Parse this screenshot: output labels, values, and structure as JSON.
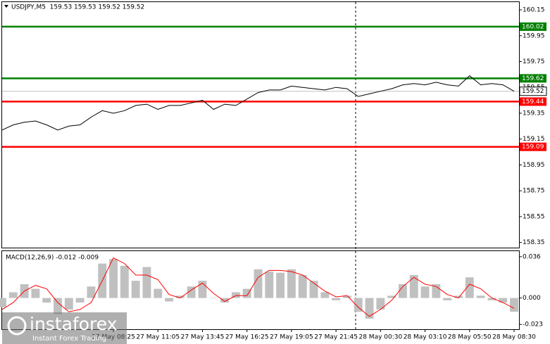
{
  "chart_data": [
    {
      "type": "line",
      "title": "USDJPY,M5  159.53 159.53 159.52 159.52",
      "categories": [
        null,
        null,
        null,
        null,
        null,
        null,
        null,
        null,
        null,
        null,
        "27 May 08:25",
        null,
        null,
        null,
        "27 May 11:05",
        null,
        null,
        null,
        "27 May 13:45",
        null,
        null,
        null,
        "27 May 16:25",
        null,
        null,
        null,
        "27 May 19:05",
        null,
        null,
        null,
        "27 May 21:45",
        null,
        null,
        null,
        "28 May 00:30",
        null,
        null,
        null,
        "28 May 03:10",
        null,
        null,
        null,
        "28 May 05:50",
        null,
        null,
        null,
        "28 May 08:30"
      ],
      "values": [
        159.22,
        159.26,
        159.28,
        159.29,
        159.26,
        159.22,
        159.25,
        159.26,
        159.32,
        159.37,
        159.35,
        159.37,
        159.41,
        159.42,
        159.38,
        159.41,
        159.41,
        159.43,
        159.45,
        159.38,
        159.42,
        159.41,
        159.46,
        159.51,
        159.53,
        159.53,
        159.56,
        159.55,
        159.54,
        159.53,
        159.55,
        159.54,
        159.48,
        159.5,
        159.52,
        159.54,
        159.57,
        159.58,
        159.57,
        159.59,
        159.57,
        159.56,
        159.64,
        159.57,
        159.58,
        159.57,
        159.52
      ],
      "color": "#000000",
      "ylim": [
        158.31,
        160.21
      ],
      "yticks": [
        160.15,
        159.95,
        159.75,
        159.55,
        159.35,
        159.15,
        158.95,
        158.75,
        158.55,
        158.35
      ],
      "levels": [
        {
          "value": 160.02,
          "color": "#008000"
        },
        {
          "value": 159.62,
          "color": "#008000"
        },
        {
          "value": 159.44,
          "color": "#ff0000"
        },
        {
          "value": 159.09,
          "color": "#ff0000"
        }
      ],
      "last_price": 159.52
    },
    {
      "type": "macd",
      "title": "MACD(12,26,9) -0.012 -0.009",
      "histogram_color": "#c0c0c0",
      "histogram_values": [
        -0.008,
        0.005,
        0.012,
        0.008,
        -0.004,
        -0.014,
        -0.01,
        -0.004,
        0.01,
        0.03,
        0.034,
        0.028,
        0.015,
        0.027,
        0.008,
        -0.003,
        0.002,
        0.01,
        0.015,
        0.0,
        -0.004,
        0.005,
        0.008,
        0.025,
        0.023,
        0.022,
        0.025,
        0.02,
        0.015,
        0.005,
        -0.002,
        0.002,
        -0.012,
        -0.018,
        -0.01,
        0.002,
        0.012,
        0.02,
        0.01,
        0.012,
        -0.002,
        0.002,
        0.018,
        0.002,
        -0.002,
        -0.004,
        -0.012
      ],
      "signal_color": "#ff0000",
      "signal_values": [
        -0.01,
        -0.004,
        0.006,
        0.011,
        0.008,
        -0.004,
        -0.012,
        -0.01,
        -0.004,
        0.015,
        0.035,
        0.03,
        0.02,
        0.02,
        0.016,
        0.003,
        0.0,
        0.007,
        0.013,
        0.004,
        -0.003,
        0.002,
        0.002,
        0.018,
        0.024,
        0.024,
        0.023,
        0.02,
        0.013,
        0.006,
        0.001,
        0.002,
        -0.008,
        -0.016,
        -0.01,
        -0.002,
        0.01,
        0.018,
        0.012,
        0.01,
        0.003,
        0.0,
        0.012,
        0.008,
        0.0,
        -0.004,
        -0.009
      ],
      "ylim": [
        -0.0272,
        0.0408
      ],
      "yticks": [
        0.036,
        {
          "value": 0,
          "label": "0.000"
        },
        -0.023
      ]
    }
  ],
  "watermark": {
    "brand": "instaforex",
    "tagline": "Instant Forex Trading"
  }
}
